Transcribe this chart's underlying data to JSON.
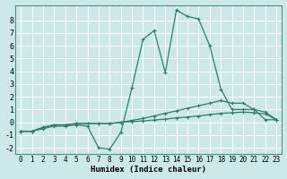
{
  "xlabel": "Humidex (Indice chaleur)",
  "background_color": "#cce8e8",
  "grid_color": "#ffffff",
  "line_color": "#2e7d6e",
  "xlim": [
    -0.5,
    23.5
  ],
  "ylim": [
    -2.5,
    9.2
  ],
  "xticks": [
    0,
    1,
    2,
    3,
    4,
    5,
    6,
    7,
    8,
    9,
    10,
    11,
    12,
    13,
    14,
    15,
    16,
    17,
    18,
    19,
    20,
    21,
    22,
    23
  ],
  "yticks": [
    -2,
    -1,
    0,
    1,
    2,
    3,
    4,
    5,
    6,
    7,
    8
  ],
  "curve1_x": [
    0,
    1,
    2,
    3,
    4,
    5,
    6,
    7,
    8,
    9,
    10,
    11,
    12,
    13,
    14,
    15,
    16,
    17,
    18,
    19,
    20,
    21,
    22,
    23
  ],
  "curve1_y": [
    -0.7,
    -0.7,
    -0.5,
    -0.3,
    -0.3,
    -0.2,
    -0.3,
    -2.0,
    -2.1,
    -0.8,
    2.7,
    6.5,
    7.2,
    3.9,
    8.8,
    8.3,
    8.1,
    6.0,
    2.6,
    1.0,
    1.0,
    1.0,
    0.2,
    0.2
  ],
  "curve2_x": [
    0,
    1,
    2,
    3,
    4,
    5,
    6,
    7,
    8,
    9,
    10,
    11,
    12,
    13,
    14,
    15,
    16,
    17,
    18,
    19,
    20,
    21,
    22,
    23
  ],
  "curve2_y": [
    -0.7,
    -0.7,
    -0.4,
    -0.2,
    -0.2,
    -0.1,
    -0.1,
    -0.1,
    -0.1,
    0.0,
    0.15,
    0.3,
    0.5,
    0.7,
    0.9,
    1.1,
    1.3,
    1.5,
    1.7,
    1.5,
    1.5,
    1.0,
    0.8,
    0.2
  ],
  "curve3_x": [
    0,
    1,
    2,
    3,
    4,
    5,
    6,
    7,
    8,
    9,
    10,
    11,
    12,
    13,
    14,
    15,
    16,
    17,
    18,
    19,
    20,
    21,
    22,
    23
  ],
  "curve3_y": [
    -0.7,
    -0.7,
    -0.4,
    -0.2,
    -0.2,
    -0.1,
    -0.1,
    -0.1,
    -0.1,
    0.0,
    0.05,
    0.1,
    0.18,
    0.25,
    0.35,
    0.42,
    0.5,
    0.6,
    0.7,
    0.75,
    0.8,
    0.75,
    0.65,
    0.2
  ],
  "markersize": 3,
  "linewidth": 0.9,
  "tick_fontsize": 5.5,
  "xlabel_fontsize": 6.5
}
